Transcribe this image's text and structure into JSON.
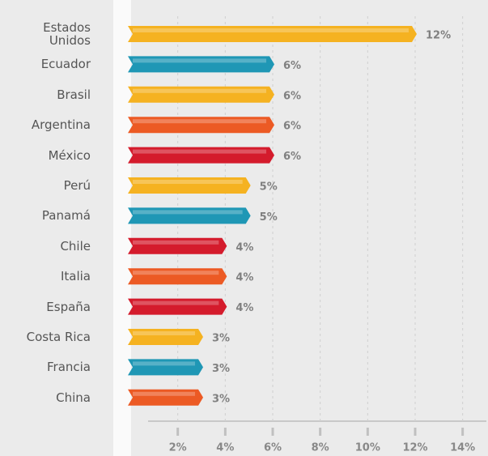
{
  "chart_data": {
    "type": "hbar",
    "categories": [
      "Estados Unidos",
      "Ecuador",
      "Brasil",
      "Argentina",
      "México",
      "Perú",
      "Panamá",
      "Chile",
      "Italia",
      "España",
      "Costa Rica",
      "Francia",
      "China"
    ],
    "values": [
      12,
      6,
      6,
      6,
      6,
      5,
      5,
      4,
      4,
      4,
      3,
      3,
      3
    ],
    "value_labels": [
      "12%",
      "6%",
      "6%",
      "6%",
      "6%",
      "5%",
      "5%",
      "4%",
      "4%",
      "4%",
      "3%",
      "3%",
      "3%"
    ],
    "colors": [
      "#f5b221",
      "#1f97b5",
      "#f5b221",
      "#ec5a24",
      "#d41b2c",
      "#f5b221",
      "#1f97b5",
      "#d41b2c",
      "#ec5a24",
      "#d41b2c",
      "#f5b221",
      "#1f97b5",
      "#ec5a24"
    ],
    "xlim": [
      0,
      15
    ],
    "xticks": [
      {
        "value": 2,
        "label": "2%"
      },
      {
        "value": 4,
        "label": "4%"
      },
      {
        "value": 6,
        "label": "6%"
      },
      {
        "value": 8,
        "label": "8%"
      },
      {
        "value": 10,
        "label": "10%"
      },
      {
        "value": 12,
        "label": "12%"
      },
      {
        "value": 14,
        "label": "14%"
      }
    ],
    "grid": true
  }
}
